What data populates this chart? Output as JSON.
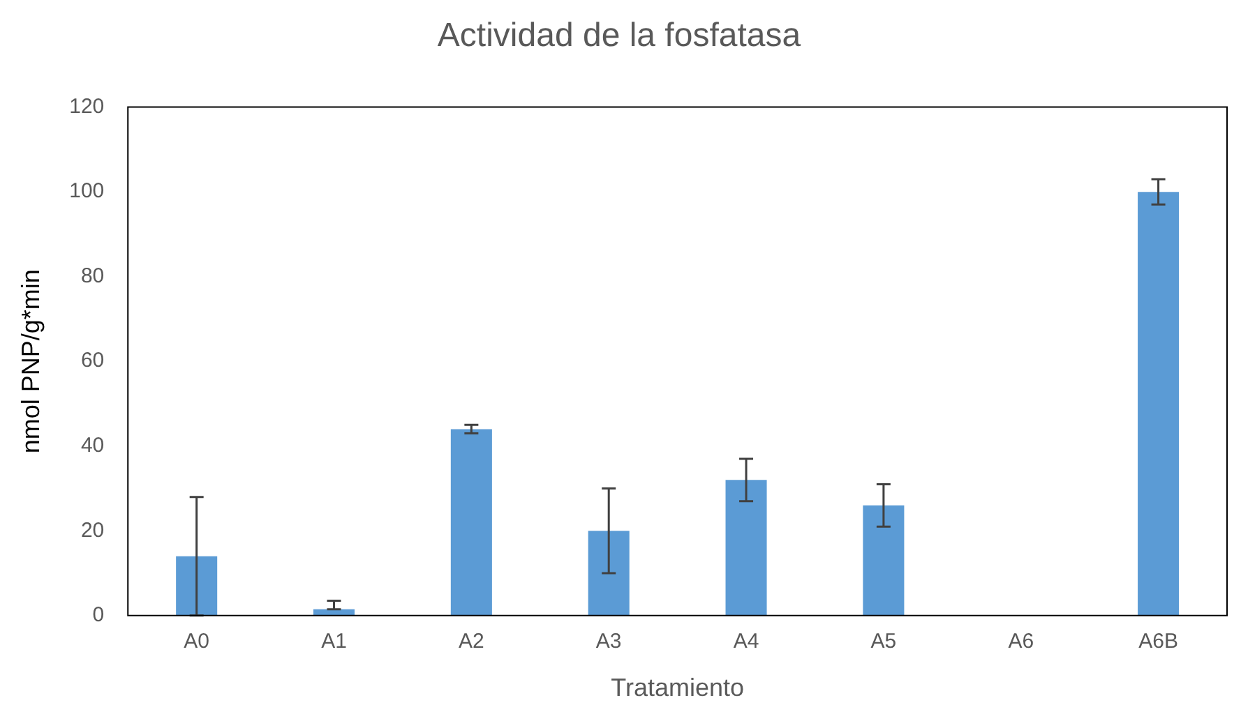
{
  "chart_data": {
    "type": "bar",
    "title": "Actividad de la fosfatasa",
    "xlabel": "Tratamiento",
    "ylabel": "nmol PNP/g*min",
    "categories": [
      "A0",
      "A1",
      "A2",
      "A3",
      "A4",
      "A5",
      "A6",
      "A6B"
    ],
    "values": [
      14,
      1.5,
      44,
      20,
      32,
      26,
      null,
      100
    ],
    "errors": [
      14,
      [
        1.5,
        3.5
      ],
      1,
      10,
      5,
      5,
      null,
      3
    ],
    "color": "#5b9bd5",
    "ylim": [
      0,
      120
    ],
    "yticks": [
      0,
      20,
      40,
      60,
      80,
      100,
      120
    ],
    "grid": false,
    "legend": false
  }
}
